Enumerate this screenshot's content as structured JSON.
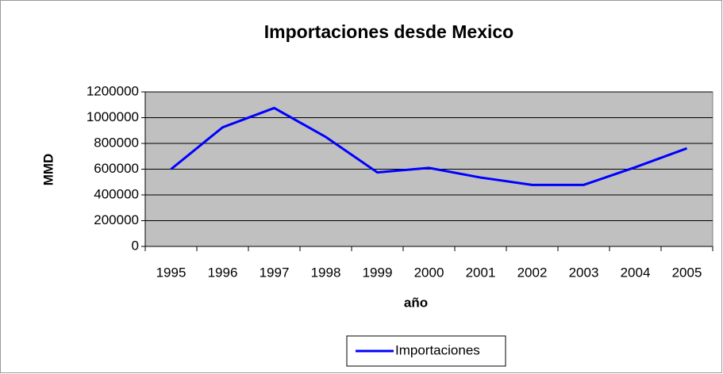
{
  "chart_data": {
    "type": "line",
    "title": "Importaciones desde Mexico",
    "x_label": "año",
    "y_label": "MMD",
    "categories": [
      "1995",
      "1996",
      "1997",
      "1998",
      "1999",
      "2000",
      "2001",
      "2002",
      "2003",
      "2004",
      "2005"
    ],
    "series": [
      {
        "name": "Importaciones",
        "color": "#0000ff",
        "values": [
          600000,
          925000,
          1075000,
          850000,
          575000,
          610000,
          535000,
          478000,
          478000,
          615000,
          762000
        ]
      }
    ],
    "ylim": [
      0,
      1200000
    ],
    "yticks": [
      0,
      200000,
      400000,
      600000,
      800000,
      1000000,
      1200000
    ],
    "grid": true,
    "legend": "bottom"
  }
}
